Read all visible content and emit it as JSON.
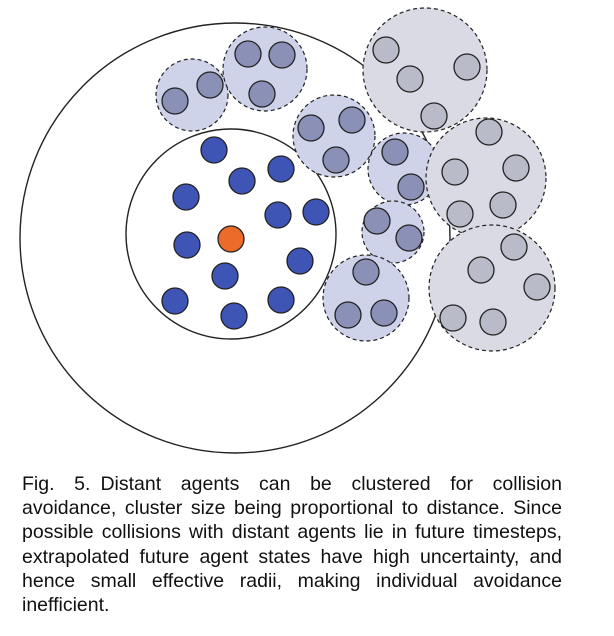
{
  "figure": {
    "colors": {
      "ego_agent": "#ec6a2a",
      "near_agent": "#3f55b6",
      "mid_agent": "#8a90b6",
      "mid_cluster_fill": "#cfd3ea",
      "far_agent": "#b9bcc8",
      "far_cluster_fill": "#d9dae3",
      "outline": "#222222"
    },
    "legend_icons": [
      "ego-agent-icon",
      "near-agent-icon",
      "mid-cluster-icon",
      "far-cluster-icon"
    ]
  },
  "caption": {
    "label": "Fig. 5.",
    "text": "Distant agents can be clustered for collision avoidance, cluster size being proportional to distance. Since possible collisions with distant agents lie in future timesteps, extrapolated future agent states have high uncertainty, and hence small effective radii, making individual avoidance inefficient."
  }
}
